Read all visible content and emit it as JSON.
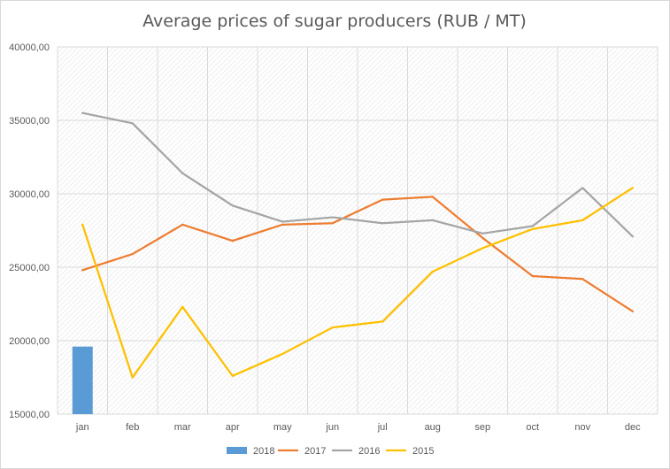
{
  "chart_data": {
    "type": "line",
    "title": "Average prices of sugar producers (RUB / MT)",
    "xlabel": "",
    "ylabel": "",
    "categories": [
      "jan",
      "feb",
      "mar",
      "apr",
      "may",
      "jun",
      "jul",
      "aug",
      "sep",
      "oct",
      "nov",
      "dec"
    ],
    "ylim": [
      15000,
      40000
    ],
    "yticks": [
      "15000,00",
      "20000,00",
      "25000,00",
      "30000,00",
      "35000,00",
      "40000,00"
    ],
    "grid": true,
    "legend_position": "bottom",
    "series": [
      {
        "name": "2018",
        "kind": "bar",
        "color": "#5b9bd5",
        "values": [
          19600,
          null,
          null,
          null,
          null,
          null,
          null,
          null,
          null,
          null,
          null,
          null
        ]
      },
      {
        "name": "2017",
        "kind": "line",
        "color": "#ed7d31",
        "values": [
          24800,
          25900,
          27900,
          26800,
          27900,
          28000,
          29600,
          29800,
          27000,
          24400,
          24200,
          22000
        ]
      },
      {
        "name": "2016",
        "kind": "line",
        "color": "#a5a5a5",
        "values": [
          35500,
          34800,
          31400,
          29200,
          28100,
          28400,
          28000,
          28200,
          27300,
          27800,
          30400,
          27100
        ]
      },
      {
        "name": "2015",
        "kind": "line",
        "color": "#ffc000",
        "values": [
          27900,
          17500,
          22300,
          17600,
          19100,
          20900,
          21300,
          24700,
          26300,
          27600,
          28200,
          30400
        ]
      }
    ]
  }
}
